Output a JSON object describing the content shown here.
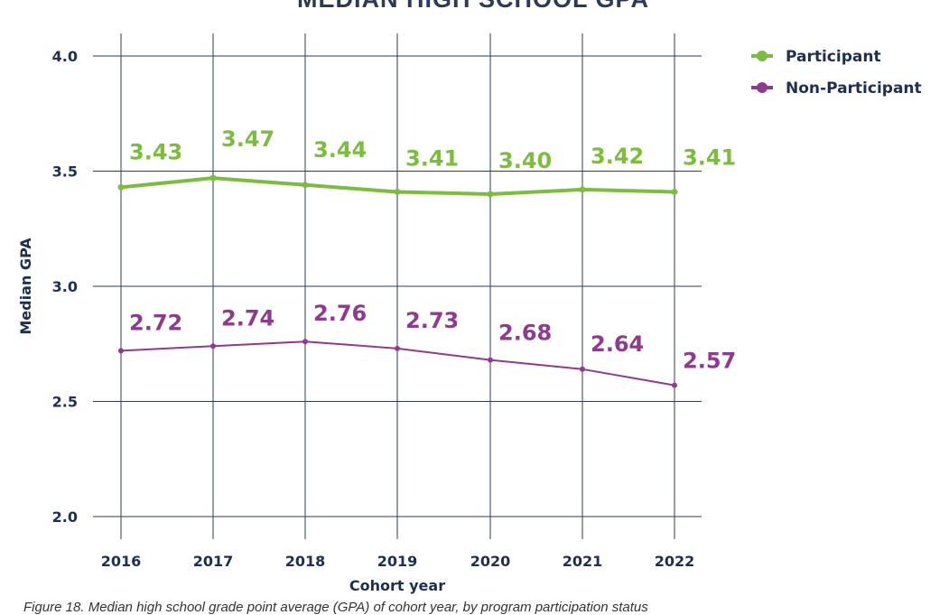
{
  "chart_data": {
    "type": "line",
    "title": "MEDIAN HIGH SCHOOL GPA",
    "xlabel": "Cohort year",
    "ylabel": "Median GPA",
    "categories": [
      "2016",
      "2017",
      "2018",
      "2019",
      "2020",
      "2021",
      "2022"
    ],
    "yticks": [
      "2.0",
      "2.5",
      "3.0",
      "3.5",
      "4.0"
    ],
    "ylim": [
      2.0,
      4.0
    ],
    "grid": true,
    "legend_position": "top-right",
    "series": [
      {
        "name": "Participant",
        "color": "#7dbb42",
        "values": [
          3.43,
          3.47,
          3.44,
          3.41,
          3.4,
          3.42,
          3.41
        ],
        "labels": [
          "3.43",
          "3.47",
          "3.44",
          "3.41",
          "3.40",
          "3.42",
          "3.41"
        ]
      },
      {
        "name": "Non-Participant",
        "color": "#8e3a8f",
        "values": [
          2.72,
          2.74,
          2.76,
          2.73,
          2.68,
          2.64,
          2.57
        ],
        "labels": [
          "2.72",
          "2.74",
          "2.76",
          "2.73",
          "2.68",
          "2.64",
          "2.57"
        ]
      }
    ]
  },
  "caption": "Figure 18. Median high school grade point average (GPA) of cohort year, by program participation status"
}
